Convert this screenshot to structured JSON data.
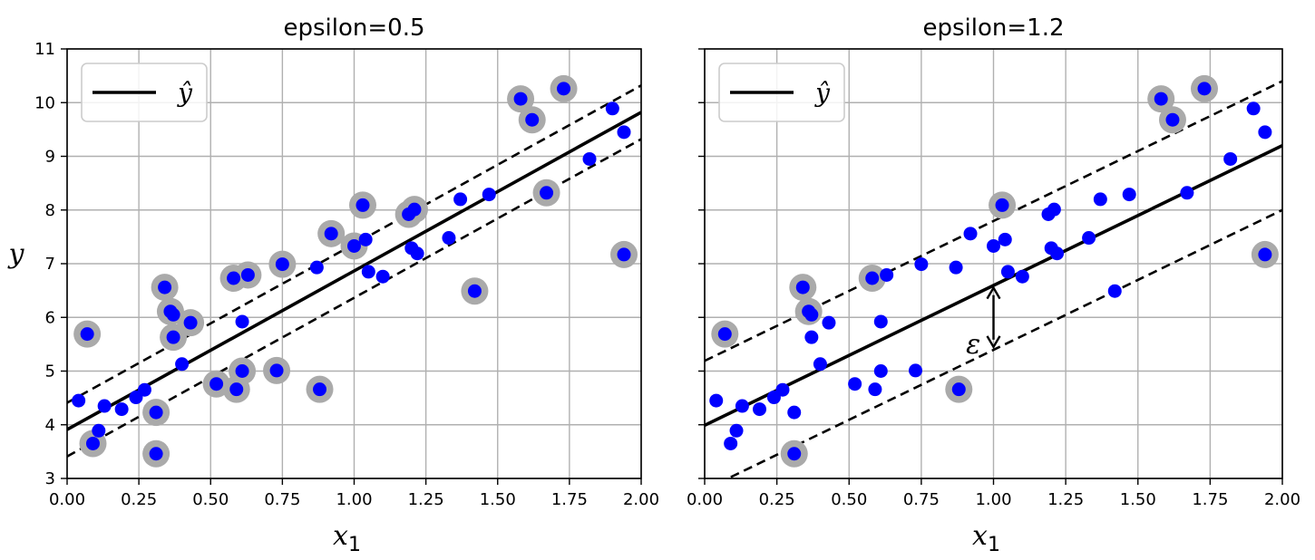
{
  "chart_data": [
    {
      "type": "scatter",
      "title": "epsilon=0.5",
      "xlabel": "x",
      "xlabel_subscript": "1",
      "ylabel": "y",
      "xlim": [
        0,
        2
      ],
      "ylim": [
        3,
        11
      ],
      "xticks": [
        "0.00",
        "0.25",
        "0.50",
        "0.75",
        "1.00",
        "1.25",
        "1.50",
        "1.75",
        "2.00"
      ],
      "yticks": [
        "3",
        "4",
        "5",
        "6",
        "7",
        "8",
        "9",
        "10",
        "11"
      ],
      "grid": true,
      "legend": {
        "position": "top-left",
        "entries": [
          {
            "label": "ŷ",
            "color": "#000000"
          }
        ]
      },
      "lines": [
        {
          "role": "prediction",
          "style": "solid",
          "points": [
            [
              0,
              3.91
            ],
            [
              2,
              9.82
            ]
          ]
        },
        {
          "role": "margin-upper",
          "style": "dashed",
          "points": [
            [
              0,
              4.41
            ],
            [
              2,
              10.32
            ]
          ]
        },
        {
          "role": "margin-lower",
          "style": "dashed",
          "points": [
            [
              0,
              3.41
            ],
            [
              2,
              9.32
            ]
          ]
        }
      ],
      "points": [
        [
          0.04,
          4.45,
          0
        ],
        [
          0.07,
          5.69,
          1
        ],
        [
          0.09,
          3.65,
          1
        ],
        [
          0.11,
          3.89,
          0
        ],
        [
          0.13,
          4.35,
          0
        ],
        [
          0.19,
          4.29,
          0
        ],
        [
          0.24,
          4.51,
          0
        ],
        [
          0.27,
          4.65,
          0
        ],
        [
          0.31,
          4.23,
          1
        ],
        [
          0.31,
          3.46,
          1
        ],
        [
          0.34,
          6.56,
          1
        ],
        [
          0.36,
          6.11,
          1
        ],
        [
          0.37,
          6.05,
          0
        ],
        [
          0.37,
          5.63,
          1
        ],
        [
          0.4,
          5.13,
          0
        ],
        [
          0.43,
          5.9,
          1
        ],
        [
          0.52,
          4.76,
          1
        ],
        [
          0.58,
          6.73,
          1
        ],
        [
          0.59,
          4.66,
          1
        ],
        [
          0.61,
          5.0,
          1
        ],
        [
          0.61,
          5.92,
          0
        ],
        [
          0.63,
          6.79,
          1
        ],
        [
          0.75,
          6.99,
          1
        ],
        [
          0.73,
          5.01,
          1
        ],
        [
          0.87,
          6.93,
          0
        ],
        [
          0.88,
          4.66,
          1
        ],
        [
          0.92,
          7.56,
          1
        ],
        [
          1.0,
          7.33,
          1
        ],
        [
          1.03,
          8.09,
          1
        ],
        [
          1.04,
          7.45,
          0
        ],
        [
          1.05,
          6.85,
          0
        ],
        [
          1.1,
          6.76,
          0
        ],
        [
          1.19,
          7.92,
          1
        ],
        [
          1.21,
          8.01,
          1
        ],
        [
          1.2,
          7.29,
          0
        ],
        [
          1.22,
          7.19,
          0
        ],
        [
          1.33,
          7.48,
          0
        ],
        [
          1.37,
          8.2,
          0
        ],
        [
          1.42,
          6.49,
          1
        ],
        [
          1.47,
          8.29,
          0
        ],
        [
          1.58,
          10.07,
          1
        ],
        [
          1.62,
          9.68,
          1
        ],
        [
          1.67,
          8.32,
          1
        ],
        [
          1.73,
          10.26,
          1
        ],
        [
          1.82,
          8.95,
          0
        ],
        [
          1.9,
          9.89,
          0
        ],
        [
          1.94,
          9.45,
          0
        ],
        [
          1.94,
          7.17,
          1
        ]
      ]
    },
    {
      "type": "scatter",
      "title": "epsilon=1.2",
      "xlabel": "x",
      "xlabel_subscript": "1",
      "ylabel": "",
      "xlim": [
        0,
        2
      ],
      "ylim": [
        3,
        11
      ],
      "xticks": [
        "0.00",
        "0.25",
        "0.50",
        "0.75",
        "1.00",
        "1.25",
        "1.50",
        "1.75",
        "2.00"
      ],
      "yticks": [],
      "grid": true,
      "legend": {
        "position": "top-left",
        "entries": [
          {
            "label": "ŷ",
            "color": "#000000"
          }
        ]
      },
      "lines": [
        {
          "role": "prediction",
          "style": "solid",
          "points": [
            [
              0,
              3.99
            ],
            [
              2,
              9.2
            ]
          ]
        },
        {
          "role": "margin-upper",
          "style": "dashed",
          "points": [
            [
              0,
              5.19
            ],
            [
              2,
              10.4
            ]
          ]
        },
        {
          "role": "margin-lower",
          "style": "dashed",
          "points": [
            [
              0,
              2.79
            ],
            [
              2,
              8.0
            ]
          ]
        }
      ],
      "annotation": {
        "text": "ε",
        "arrow_x": 1.0,
        "arrow_y": [
          5.45,
          6.55
        ],
        "text_pos": [
          0.93,
          5.5
        ]
      },
      "points": [
        [
          0.04,
          4.45,
          0
        ],
        [
          0.07,
          5.69,
          1
        ],
        [
          0.09,
          3.65,
          0
        ],
        [
          0.11,
          3.89,
          0
        ],
        [
          0.13,
          4.35,
          0
        ],
        [
          0.19,
          4.29,
          0
        ],
        [
          0.24,
          4.51,
          0
        ],
        [
          0.27,
          4.65,
          0
        ],
        [
          0.31,
          4.23,
          0
        ],
        [
          0.31,
          3.46,
          1
        ],
        [
          0.34,
          6.56,
          1
        ],
        [
          0.36,
          6.11,
          1
        ],
        [
          0.37,
          6.05,
          0
        ],
        [
          0.37,
          5.63,
          0
        ],
        [
          0.4,
          5.13,
          0
        ],
        [
          0.43,
          5.9,
          0
        ],
        [
          0.52,
          4.76,
          0
        ],
        [
          0.58,
          6.73,
          1
        ],
        [
          0.59,
          4.66,
          0
        ],
        [
          0.61,
          5.0,
          0
        ],
        [
          0.61,
          5.92,
          0
        ],
        [
          0.63,
          6.79,
          0
        ],
        [
          0.75,
          6.99,
          0
        ],
        [
          0.73,
          5.01,
          0
        ],
        [
          0.87,
          6.93,
          0
        ],
        [
          0.88,
          4.66,
          1
        ],
        [
          0.92,
          7.56,
          0
        ],
        [
          1.0,
          7.33,
          0
        ],
        [
          1.03,
          8.09,
          1
        ],
        [
          1.04,
          7.45,
          0
        ],
        [
          1.05,
          6.85,
          0
        ],
        [
          1.1,
          6.76,
          0
        ],
        [
          1.19,
          7.92,
          0
        ],
        [
          1.21,
          8.01,
          0
        ],
        [
          1.2,
          7.29,
          0
        ],
        [
          1.22,
          7.19,
          0
        ],
        [
          1.33,
          7.48,
          0
        ],
        [
          1.37,
          8.2,
          0
        ],
        [
          1.42,
          6.49,
          0
        ],
        [
          1.47,
          8.29,
          0
        ],
        [
          1.58,
          10.07,
          1
        ],
        [
          1.62,
          9.68,
          1
        ],
        [
          1.67,
          8.32,
          0
        ],
        [
          1.73,
          10.26,
          1
        ],
        [
          1.82,
          8.95,
          0
        ],
        [
          1.9,
          9.89,
          0
        ],
        [
          1.94,
          9.45,
          0
        ],
        [
          1.94,
          7.17,
          1
        ]
      ]
    }
  ],
  "colors": {
    "point": "#0000ff",
    "support_vector_halo": "#aaaaaa",
    "grid": "#b0b0b0",
    "line": "#000000"
  }
}
